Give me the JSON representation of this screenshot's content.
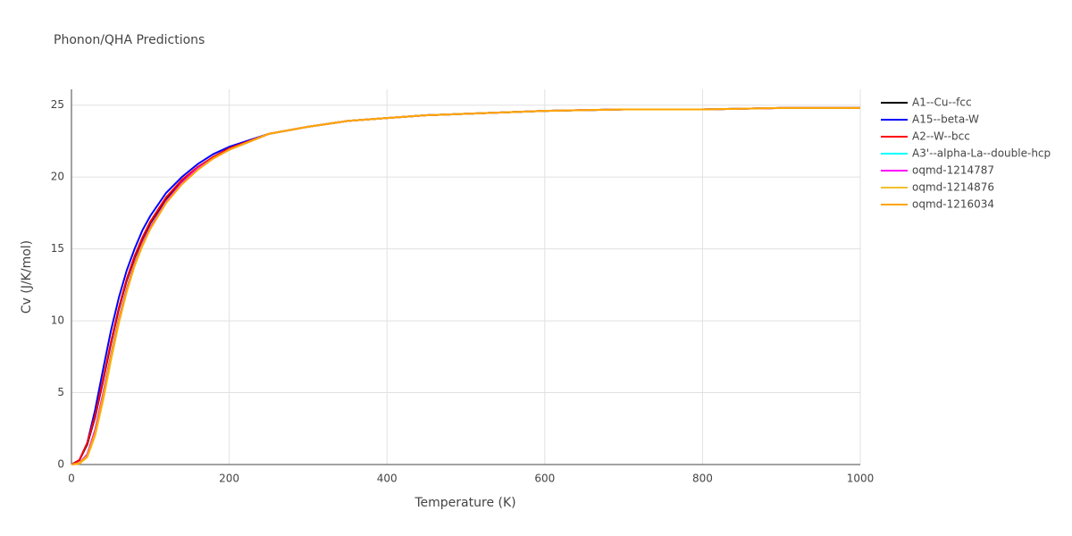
{
  "chart_data": {
    "type": "line",
    "title": "Phonon/QHA Predictions",
    "x_label": "Temperature (K)",
    "y_label": "Cv (J/K/mol)",
    "x": [
      0,
      10,
      20,
      30,
      40,
      50,
      60,
      70,
      80,
      90,
      100,
      120,
      140,
      160,
      180,
      200,
      250,
      300,
      350,
      400,
      450,
      500,
      600,
      700,
      800,
      900,
      1000
    ],
    "xlim": [
      0,
      1000
    ],
    "xticks": [
      0,
      200,
      400,
      600,
      800,
      1000
    ],
    "ylim": [
      0,
      26.1
    ],
    "yticks": [
      0,
      5,
      10,
      15,
      20,
      25
    ],
    "grid": true,
    "legend": "right",
    "series": [
      {
        "name": "A1--Cu--fcc",
        "color": "#000000",
        "values": [
          0,
          0.3,
          1.4,
          3.3,
          5.8,
          8.4,
          10.8,
          12.8,
          14.4,
          15.7,
          16.8,
          18.5,
          19.7,
          20.6,
          21.4,
          21.9,
          23.0,
          23.5,
          23.9,
          24.1,
          24.3,
          24.4,
          24.6,
          24.7,
          24.7,
          24.8,
          24.8
        ]
      },
      {
        "name": "A15--beta-W",
        "color": "#0000ff",
        "values": [
          0,
          0.3,
          1.5,
          3.8,
          6.6,
          9.3,
          11.6,
          13.5,
          15.0,
          16.3,
          17.3,
          18.9,
          20.0,
          20.9,
          21.6,
          22.1,
          23.0,
          23.5,
          23.9,
          24.1,
          24.3,
          24.4,
          24.6,
          24.7,
          24.7,
          24.8,
          24.8
        ]
      },
      {
        "name": "A2--W--bcc",
        "color": "#ff0000",
        "values": [
          0,
          0.3,
          1.5,
          3.4,
          5.9,
          8.5,
          10.9,
          12.9,
          14.5,
          15.8,
          16.9,
          18.6,
          19.8,
          20.7,
          21.4,
          22.0,
          23.0,
          23.5,
          23.9,
          24.1,
          24.3,
          24.4,
          24.6,
          24.7,
          24.7,
          24.8,
          24.8
        ]
      },
      {
        "name": "A3'--alpha-La--double-hcp",
        "color": "#00ffff",
        "values": [
          0,
          0.1,
          0.7,
          2.4,
          4.9,
          7.6,
          10.1,
          12.2,
          14.0,
          15.4,
          16.5,
          18.3,
          19.6,
          20.6,
          21.3,
          21.9,
          23.0,
          23.5,
          23.9,
          24.1,
          24.3,
          24.4,
          24.6,
          24.7,
          24.7,
          24.8,
          24.8
        ]
      },
      {
        "name": "oqmd-1214787",
        "color": "#ff00ff",
        "values": [
          0,
          0.1,
          0.7,
          2.4,
          4.9,
          7.6,
          10.1,
          12.2,
          14.0,
          15.4,
          16.5,
          18.3,
          19.6,
          20.6,
          21.3,
          21.9,
          23.0,
          23.5,
          23.9,
          24.1,
          24.3,
          24.4,
          24.6,
          24.7,
          24.7,
          24.8,
          24.8
        ]
      },
      {
        "name": "oqmd-1214876",
        "color": "#f2c12e",
        "values": [
          0,
          0.05,
          0.5,
          2.0,
          4.4,
          7.2,
          9.8,
          12.0,
          13.8,
          15.2,
          16.4,
          18.2,
          19.5,
          20.5,
          21.3,
          21.9,
          23.0,
          23.5,
          23.9,
          24.1,
          24.3,
          24.4,
          24.6,
          24.7,
          24.7,
          24.8,
          24.8
        ]
      },
      {
        "name": "oqmd-1216034",
        "color": "#ffa500",
        "values": [
          0,
          0.1,
          0.6,
          2.2,
          4.7,
          7.5,
          10.0,
          12.1,
          13.9,
          15.3,
          16.4,
          18.2,
          19.5,
          20.5,
          21.3,
          21.9,
          23.0,
          23.5,
          23.9,
          24.1,
          24.3,
          24.4,
          24.6,
          24.7,
          24.7,
          24.8,
          24.8
        ]
      }
    ]
  }
}
